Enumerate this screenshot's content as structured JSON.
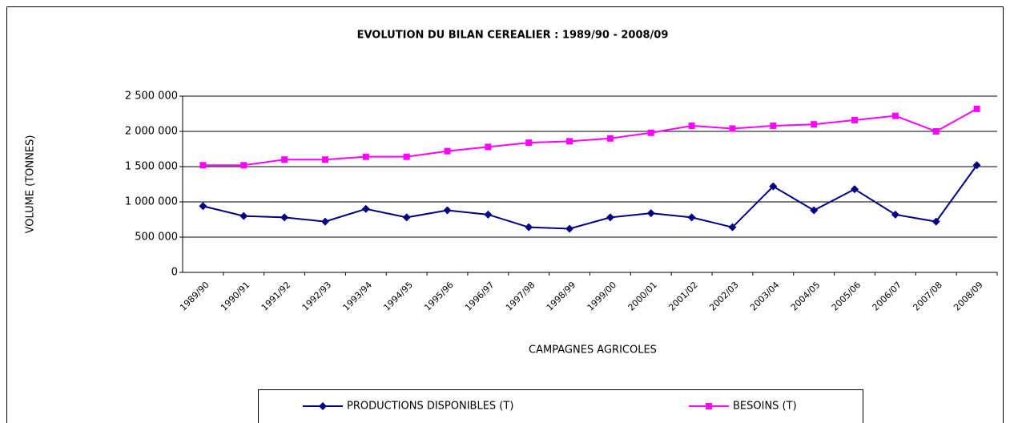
{
  "chart_data": {
    "type": "line",
    "title": "EVOLUTION DU BILAN CEREALIER : 1989/90 - 2008/09",
    "x_label": "CAMPAGNES AGRICOLES",
    "y_label": "VOLUME (TONNES)",
    "categories": [
      "1989/90",
      "1990/91",
      "1991/92",
      "1992/93",
      "1993/94",
      "1994/95",
      "1995/96",
      "1996/97",
      "1997/98",
      "1998/99",
      "1999/00",
      "2000/01",
      "2001/02",
      "2002/03",
      "2003/04",
      "2004/05",
      "2005/06",
      "2006/07",
      "2007/08",
      "2008/09"
    ],
    "series": [
      {
        "name": "PRODUCTIONS DISPONIBLES (T)",
        "color": "#000080",
        "marker": "diamond",
        "values": [
          940000,
          800000,
          780000,
          720000,
          900000,
          780000,
          880000,
          820000,
          640000,
          620000,
          780000,
          840000,
          780000,
          640000,
          1220000,
          880000,
          1180000,
          820000,
          720000,
          1520000
        ]
      },
      {
        "name": "BESOINS (T)",
        "color": "#ff00ff",
        "marker": "square",
        "values": [
          1520000,
          1520000,
          1600000,
          1600000,
          1640000,
          1640000,
          1720000,
          1780000,
          1840000,
          1860000,
          1900000,
          1980000,
          2080000,
          2040000,
          2080000,
          2100000,
          2160000,
          2220000,
          2000000,
          2320000
        ]
      }
    ],
    "ylim": [
      0,
      2500000
    ],
    "yticks": [
      0,
      {
        "value": 500000,
        "label": "500 000"
      },
      {
        "value": 1000000,
        "label": "1 000 000"
      },
      {
        "value": 1500000,
        "label": "1 500 000"
      },
      {
        "value": 2000000,
        "label": "2 000 000"
      },
      {
        "value": 2500000,
        "label": "2 500 000"
      }
    ],
    "grid": true,
    "legend": "bottom"
  }
}
